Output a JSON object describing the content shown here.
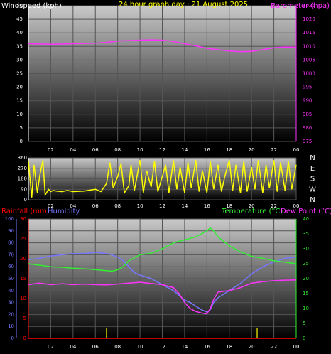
{
  "chart_data": [
    {
      "type": "line",
      "title": "24 hour graph day : 21 August 2025",
      "left_label": "Windspeed (kph)",
      "right_label": "Barometer (hpa)",
      "left_ticks": [
        "0",
        "5",
        "10",
        "15",
        "20",
        "25",
        "30",
        "35",
        "40",
        "45",
        "50"
      ],
      "right_ticks": [
        "975",
        "980",
        "985",
        "990",
        "995",
        "1000",
        "1005",
        "1010",
        "1015",
        "1020",
        "1025"
      ],
      "ylim_left": [
        0,
        50
      ],
      "ylim_right": [
        975,
        1025
      ],
      "x_ticks": [
        "02",
        "04",
        "06",
        "08",
        "10",
        "12",
        "14",
        "16",
        "18",
        "20",
        "22",
        "00"
      ],
      "xlim_hours": [
        0,
        24
      ],
      "series": [
        {
          "name": "Barometer (hpa)",
          "color": "#ff33ff",
          "axis": "right",
          "x": [
            0,
            2,
            4,
            6,
            7,
            8,
            10,
            11,
            12,
            13,
            14,
            15,
            16,
            17,
            18,
            19,
            20,
            21,
            22,
            23,
            24
          ],
          "y": [
            1011,
            1010.8,
            1011,
            1011.2,
            1011.5,
            1012,
            1012.3,
            1012.4,
            1012.3,
            1011.8,
            1011,
            1010.2,
            1009.3,
            1008.8,
            1008.3,
            1008.1,
            1008.2,
            1008.8,
            1009.5,
            1009.8,
            1009.7
          ]
        }
      ]
    },
    {
      "type": "line",
      "left_ticks": [
        "0",
        "90",
        "180",
        "270",
        "360"
      ],
      "right_ticks": [
        "N",
        "W",
        "S",
        "E",
        "N"
      ],
      "ylim": [
        0,
        360
      ],
      "x_ticks": [
        "02",
        "04",
        "06",
        "08",
        "10",
        "12",
        "14",
        "16",
        "18",
        "20",
        "22",
        "00"
      ],
      "xlim_hours": [
        0,
        24
      ],
      "series": [
        {
          "name": "Wind direction",
          "color": "#ffff00",
          "x": [
            0,
            0.3,
            0.5,
            0.8,
            1,
            1.3,
            1.5,
            1.8,
            2,
            2.2,
            2.5,
            3,
            3.5,
            4,
            5,
            6,
            6.5,
            7,
            7.3,
            7.6,
            8,
            8.3,
            8.6,
            9,
            9.2,
            9.5,
            10,
            10.3,
            10.6,
            11,
            11.3,
            11.6,
            12,
            12.3,
            12.6,
            13,
            13.3,
            13.6,
            14,
            14.3,
            14.6,
            15,
            15.3,
            15.6,
            16,
            16.3,
            16.6,
            17,
            17.3,
            17.6,
            18,
            18.3,
            18.6,
            19,
            19.3,
            19.6,
            20,
            20.3,
            20.6,
            21,
            21.3,
            21.6,
            22,
            22.3,
            22.6,
            23,
            23.3,
            23.6,
            24
          ],
          "y": [
            330,
            20,
            300,
            60,
            200,
            340,
            40,
            90,
            70,
            80,
            75,
            70,
            80,
            70,
            75,
            90,
            70,
            140,
            320,
            100,
            200,
            310,
            60,
            120,
            300,
            80,
            340,
            60,
            250,
            110,
            330,
            70,
            200,
            300,
            60,
            340,
            90,
            280,
            60,
            320,
            100,
            340,
            70,
            250,
            60,
            330,
            90,
            300,
            70,
            200,
            340,
            80,
            300,
            60,
            330,
            70,
            280,
            90,
            340,
            60,
            300,
            100,
            340,
            70,
            320,
            80,
            330,
            90,
            300
          ]
        }
      ]
    },
    {
      "type": "line",
      "left_label": "Rainfall (mm)",
      "left_label2": "Humidity",
      "right_label": "Temperature (°C)",
      "right_label2": "Dew Point (°C)",
      "humidity_ticks": [
        "0",
        "10",
        "20",
        "30",
        "40",
        "50",
        "60",
        "70",
        "80",
        "90",
        "100"
      ],
      "rain_ticks": [
        "0",
        "5",
        "10",
        "15",
        "20",
        "25",
        "30"
      ],
      "temp_ticks": [
        "0",
        "5",
        "10",
        "15",
        "20",
        "25",
        "30",
        "35",
        "40"
      ],
      "ylim_humidity": [
        0,
        100
      ],
      "ylim_rain": [
        0,
        30
      ],
      "ylim_temp": [
        0,
        40
      ],
      "x_ticks": [
        "02",
        "04",
        "06",
        "08",
        "10",
        "12",
        "14",
        "16",
        "18",
        "20",
        "22",
        "00"
      ],
      "xlim_hours": [
        0,
        24
      ],
      "series": [
        {
          "name": "Humidity",
          "color": "#7777ff",
          "axis": "humidity",
          "x": [
            0,
            1,
            2,
            3,
            4,
            5,
            6,
            7,
            7.5,
            8,
            8.5,
            9,
            9.5,
            10,
            11,
            12,
            13,
            13.5,
            14,
            14.5,
            15,
            15.5,
            16,
            16.3,
            16.6,
            17,
            18,
            19,
            20,
            21,
            22,
            23,
            24
          ],
          "y": [
            66,
            67,
            69,
            70,
            71,
            71,
            72,
            71,
            70,
            68,
            65,
            60,
            55,
            53,
            50,
            45,
            40,
            36,
            32,
            30,
            27,
            24,
            22,
            24,
            30,
            34,
            40,
            46,
            54,
            60,
            64,
            67,
            68
          ]
        },
        {
          "name": "Temperature (°C)",
          "color": "#33ee33",
          "axis": "temp",
          "x": [
            0,
            1,
            2,
            3,
            4,
            5,
            6,
            7,
            7.5,
            8,
            8.5,
            9,
            9.5,
            10,
            11,
            12,
            13,
            14,
            15,
            15.5,
            16,
            16.3,
            16.6,
            17,
            18,
            19,
            20,
            21,
            22,
            23,
            24
          ],
          "y": [
            25,
            24.5,
            24,
            23.8,
            23.5,
            23.3,
            23,
            22.7,
            22.5,
            23,
            24,
            26,
            27,
            28,
            28.5,
            30,
            32,
            33,
            34,
            35,
            36,
            37,
            36,
            34,
            31,
            29,
            27.5,
            26.8,
            26,
            25.5,
            25
          ]
        },
        {
          "name": "Dew Point (°C)",
          "color": "#ff33ff",
          "axis": "temp",
          "x": [
            0,
            1,
            2,
            3,
            4,
            5,
            6,
            7,
            8,
            9,
            10,
            11,
            12,
            13,
            13.5,
            14,
            14.5,
            15,
            15.5,
            16,
            16.3,
            16.6,
            17,
            18,
            19,
            20,
            21,
            22,
            23,
            24
          ],
          "y": [
            18,
            18.5,
            18,
            18.3,
            18,
            18.2,
            18,
            17.9,
            18.2,
            18.5,
            18.8,
            18.4,
            18,
            17,
            15,
            12,
            10,
            9,
            8.5,
            8.2,
            10,
            13,
            15.5,
            16,
            17,
            18.5,
            19,
            19.3,
            19.5,
            19.6
          ]
        },
        {
          "name": "Rainfall (mm)",
          "color": "#ff0000",
          "axis": "rain",
          "x": [
            0,
            24
          ],
          "y": [
            0,
            0
          ]
        }
      ],
      "rain_markers_hours": [
        7,
        20.5
      ]
    }
  ]
}
